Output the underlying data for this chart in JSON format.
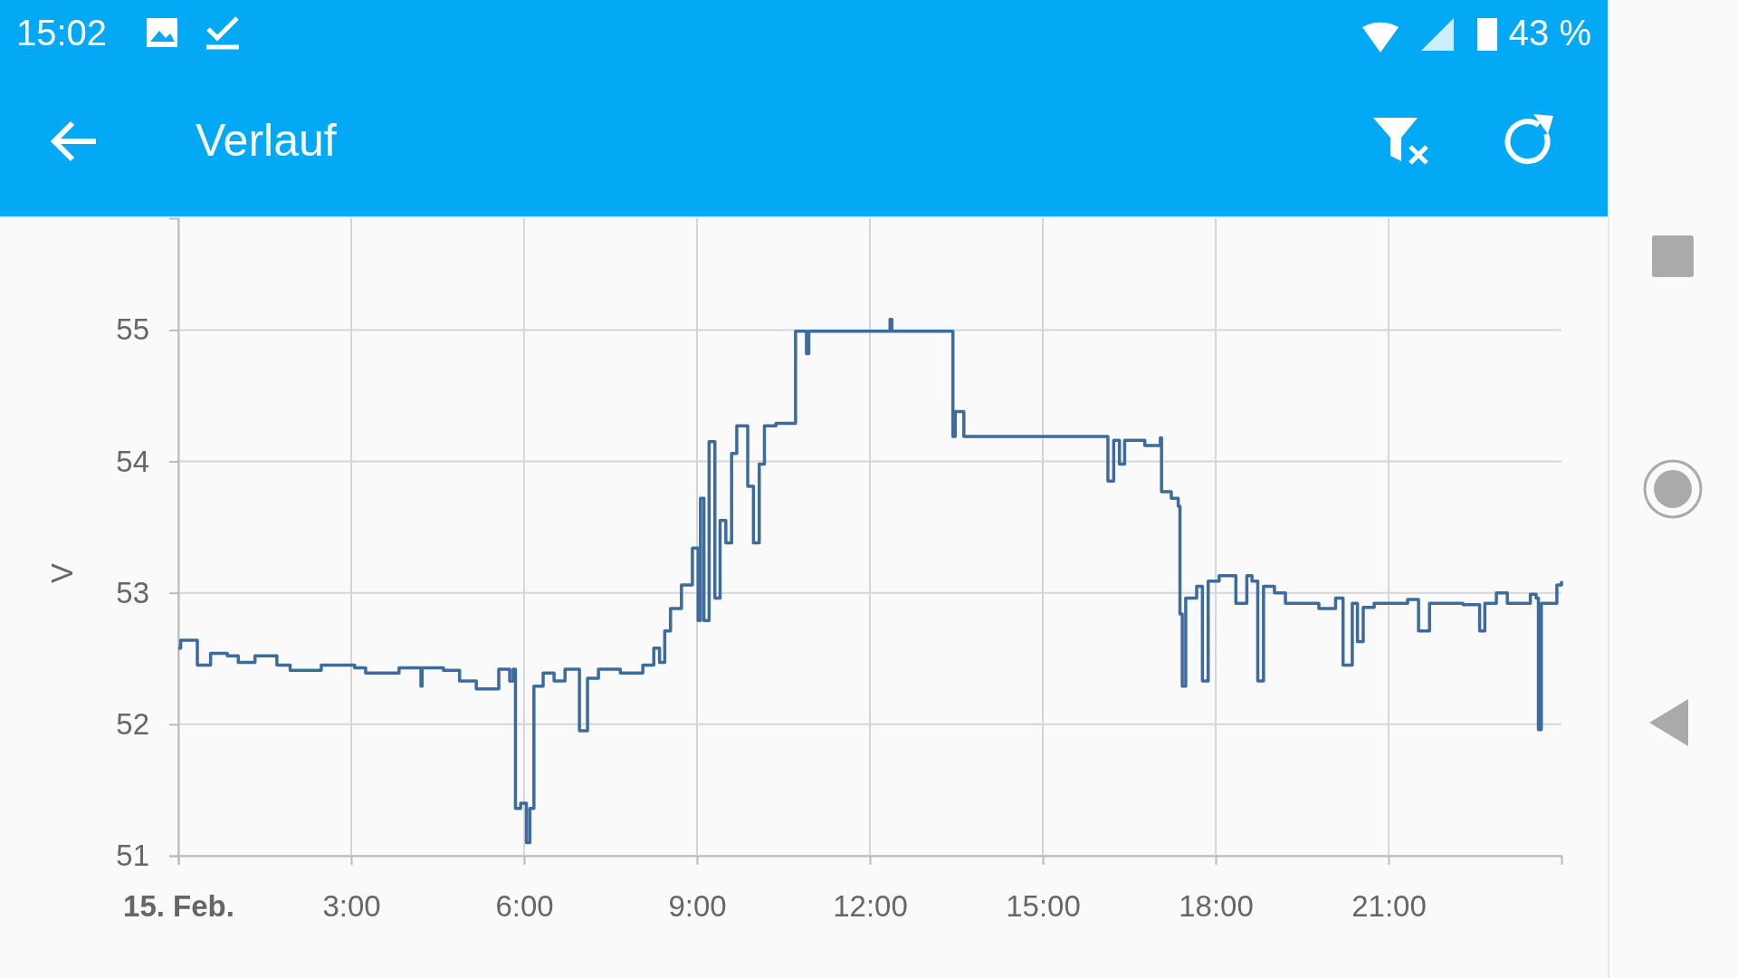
{
  "chart_data": {
    "type": "step",
    "title": "Verlauf",
    "ylabel": "V",
    "annotations": [
      "15:02",
      "43 %"
    ],
    "xlim": [
      0,
      24
    ],
    "xticks": [
      {
        "value": 0,
        "label": "15. Feb."
      },
      {
        "value": 3,
        "label": "3:00"
      },
      {
        "value": 6,
        "label": "6:00"
      },
      {
        "value": 9,
        "label": "9:00"
      },
      {
        "value": 12,
        "label": "12:00"
      },
      {
        "value": 15,
        "label": "15:00"
      },
      {
        "value": 18,
        "label": "18:00"
      },
      {
        "value": 21,
        "label": "21:00"
      }
    ],
    "ylim": [
      51,
      55.85
    ],
    "yticks": [
      51,
      52,
      53,
      54,
      55
    ],
    "grid": true,
    "marker": "none",
    "line_style": "solid",
    "series": [
      {
        "color": "#3d6b9c",
        "x": [
          0,
          0.04,
          0.33,
          0.34,
          0.56,
          0.85,
          1.04,
          1.33,
          1.71,
          1.94,
          2.48,
          3.06,
          3.25,
          3.83,
          4.21,
          4.23,
          4.6,
          4.88,
          5.17,
          5.56,
          5.75,
          5.81,
          5.85,
          5.94,
          6.04,
          6.1,
          6.17,
          6.33,
          6.52,
          6.71,
          6.9,
          6.96,
          7.1,
          7.29,
          7.67,
          8.06,
          8.25,
          8.35,
          8.44,
          8.54,
          8.73,
          8.92,
          9.02,
          9.06,
          9.12,
          9.21,
          9.31,
          9.4,
          9.5,
          9.6,
          9.69,
          9.83,
          9.88,
          9.98,
          10.08,
          10.17,
          10.37,
          10.65,
          10.71,
          10.85,
          10.9,
          10.94,
          12.29,
          12.35,
          12.38,
          13.4,
          13.44,
          13.48,
          13.6,
          13.63,
          16.04,
          16.13,
          16.23,
          16.33,
          16.42,
          16.71,
          16.77,
          17.04,
          17.06,
          17.23,
          17.35,
          17.38,
          17.42,
          17.48,
          17.67,
          17.77,
          17.87,
          18.06,
          18.25,
          18.35,
          18.54,
          18.63,
          18.73,
          18.83,
          19.02,
          19.21,
          19.6,
          19.79,
          20.08,
          20.21,
          20.37,
          20.46,
          20.56,
          20.75,
          21.33,
          21.52,
          21.71,
          22,
          22.29,
          22.58,
          22.67,
          22.87,
          23.06,
          23.46,
          23.56,
          23.6,
          23.65,
          23.83,
          23.92,
          24
        ],
        "values": [
          52.58,
          52.64,
          52.45,
          52.45,
          52.54,
          52.52,
          52.47,
          52.52,
          52.45,
          52.41,
          52.45,
          52.43,
          52.39,
          52.43,
          52.29,
          52.43,
          52.41,
          52.33,
          52.27,
          52.42,
          52.33,
          52.42,
          51.36,
          51.4,
          51.1,
          51.36,
          52.29,
          52.39,
          52.33,
          52.42,
          52.42,
          51.95,
          52.35,
          52.42,
          52.39,
          52.45,
          52.58,
          52.47,
          52.71,
          52.88,
          53.06,
          53.34,
          52.79,
          53.72,
          52.79,
          54.15,
          52.96,
          53.55,
          53.38,
          54.06,
          54.27,
          54.27,
          53.81,
          53.38,
          53.98,
          54.27,
          54.29,
          54.29,
          54.99,
          54.99,
          54.82,
          54.99,
          54.99,
          55.08,
          54.99,
          54.99,
          54.19,
          54.38,
          54.38,
          54.19,
          54.19,
          53.85,
          54.16,
          53.98,
          54.16,
          54.16,
          54.12,
          54.18,
          53.77,
          53.72,
          53.66,
          52.84,
          52.29,
          52.96,
          53.05,
          52.33,
          53.09,
          53.13,
          53.13,
          52.92,
          53.13,
          53.09,
          52.33,
          53.05,
          53.0,
          52.92,
          52.92,
          52.88,
          52.96,
          52.45,
          52.92,
          52.63,
          52.89,
          52.92,
          52.95,
          52.71,
          52.92,
          52.92,
          52.91,
          52.71,
          52.92,
          53.0,
          52.92,
          52.99,
          52.96,
          51.96,
          52.92,
          52.92,
          53.06,
          53.09
        ]
      }
    ]
  }
}
